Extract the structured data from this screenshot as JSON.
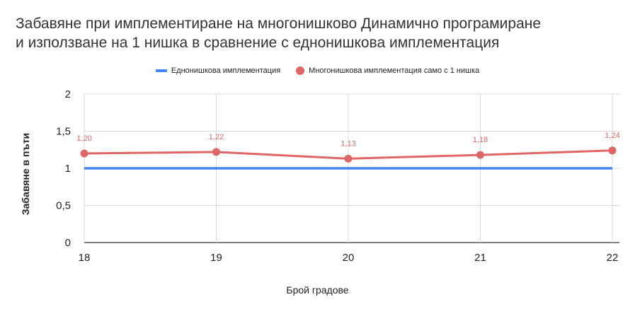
{
  "title_line1": "Забавяне при имплементиране на многонишково Динамично програмиране",
  "title_line2": "и използване на 1 нишка в сравнение с еднонишкова имплементация",
  "chart_data": {
    "type": "line",
    "x": [
      "18",
      "19",
      "20",
      "21",
      "22"
    ],
    "series": [
      {
        "name": "Еднонишкова имплементация",
        "values": [
          1,
          1,
          1,
          1,
          1
        ],
        "color": "#4285f4",
        "markers": false,
        "data_labels": []
      },
      {
        "name": "Многонишкова имплементация само с 1 нишка",
        "values": [
          1.2,
          1.22,
          1.13,
          1.18,
          1.24
        ],
        "color": "#e06666",
        "markers": true,
        "data_labels": [
          "1,20",
          "1,22",
          "1,13",
          "1,18",
          "1,24"
        ]
      }
    ],
    "xlabel": "Брой градове",
    "ylabel": "Забавяне в пъти",
    "ylim": [
      0,
      2
    ],
    "yticks": [
      "0",
      "0,5",
      "1",
      "1,5",
      "2"
    ],
    "ytick_values": [
      0,
      0.5,
      1,
      1.5,
      2
    ],
    "grid": true,
    "legend_position": "top"
  }
}
